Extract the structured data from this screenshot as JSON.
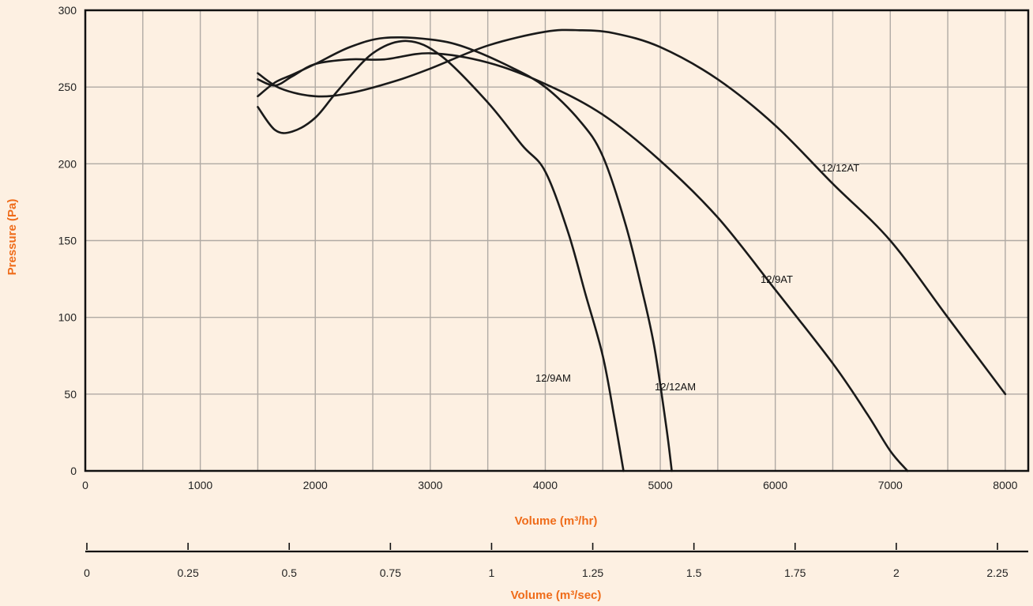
{
  "chart_data": {
    "type": "line",
    "title": "",
    "xlabel": "Volume (m³/hr)",
    "ylabel": "Pressure (Pa)",
    "xlim": [
      0,
      8200
    ],
    "ylim": [
      0,
      300
    ],
    "x_ticks": [
      "0",
      "1000",
      "2000",
      "3000",
      "4000",
      "5000",
      "6000",
      "7000",
      "8000"
    ],
    "y_ticks": [
      "0",
      "50",
      "100",
      "150",
      "200",
      "250",
      "300"
    ],
    "grid": true,
    "secondary_x_axis": {
      "label": "Volume (m³/sec)",
      "ticks": [
        "0",
        "0.25",
        "0.5",
        "0.75",
        "1",
        "1.25",
        "1.5",
        "1.75",
        "2",
        "2.25"
      ]
    },
    "series": [
      {
        "name": "12/9AM",
        "x": [
          1500,
          1650,
          1800,
          2000,
          2200,
          2500,
          2800,
          3100,
          3500,
          3800,
          4000,
          4200,
          4350,
          4500,
          4600,
          4680
        ],
        "y": [
          237,
          222,
          221,
          230,
          248,
          272,
          280,
          270,
          240,
          212,
          195,
          155,
          115,
          75,
          35,
          0
        ]
      },
      {
        "name": "12/12AM",
        "x": [
          1500,
          1650,
          1800,
          2000,
          2300,
          2600,
          3000,
          3300,
          3700,
          4000,
          4300,
          4500,
          4700,
          4850,
          4950,
          5050,
          5100
        ],
        "y": [
          244,
          253,
          258,
          265,
          276,
          282,
          281,
          276,
          263,
          250,
          228,
          205,
          160,
          115,
          80,
          30,
          0
        ]
      },
      {
        "name": "12/9AT",
        "x": [
          1500,
          1650,
          1800,
          2000,
          2300,
          2600,
          3000,
          3500,
          4000,
          4500,
          5000,
          5500,
          6000,
          6500,
          6800,
          7000,
          7150
        ],
        "y": [
          255,
          251,
          257,
          265,
          268,
          268,
          272,
          266,
          252,
          232,
          202,
          165,
          118,
          70,
          37,
          13,
          0
        ]
      },
      {
        "name": "12/12AT",
        "x": [
          1500,
          1700,
          2000,
          2300,
          2700,
          3000,
          3500,
          4000,
          4300,
          4600,
          5000,
          5500,
          6000,
          6500,
          7000,
          7500,
          8000
        ],
        "y": [
          259,
          249,
          244,
          246,
          254,
          262,
          277,
          286,
          287,
          285,
          276,
          255,
          225,
          187,
          150,
          100,
          50
        ]
      }
    ]
  }
}
